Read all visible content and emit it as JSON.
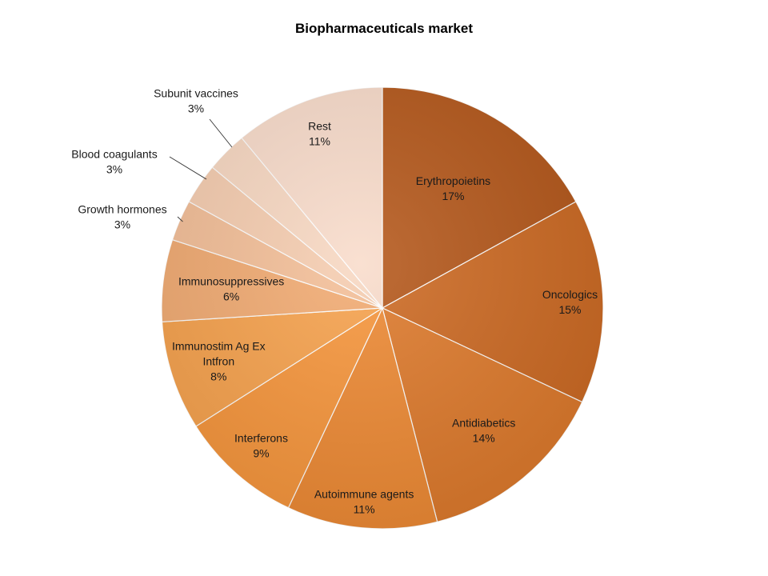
{
  "chart_data": {
    "type": "pie",
    "title": "Biopharmaceuticals market",
    "slices": [
      {
        "name": "Erythropoietins",
        "value": 17,
        "label": "17%",
        "color": "#b5581b"
      },
      {
        "name": "Oncologics",
        "value": 15,
        "label": "15%",
        "color": "#cd6a23"
      },
      {
        "name": "Antidiabetics",
        "value": 14,
        "label": "14%",
        "color": "#de7a2c"
      },
      {
        "name": "Autoimmune agents",
        "value": 11,
        "label": "11%",
        "color": "#ee8a34"
      },
      {
        "name": "Interferons",
        "value": 9,
        "label": "9%",
        "color": "#f7963c"
      },
      {
        "name": "Immunostim Ag Ex Intfron",
        "value": 8,
        "label": "8%",
        "color": "#f7a24d"
      },
      {
        "name": "Immunosuppressives",
        "value": 6,
        "label": "6%",
        "color": "#f2ab72"
      },
      {
        "name": "Growth hormones",
        "value": 3,
        "label": "3%",
        "color": "#f4bf98"
      },
      {
        "name": "Blood coagulants",
        "value": 3,
        "label": "3%",
        "color": "#f6cdb0"
      },
      {
        "name": "Subunit vaccines",
        "value": 3,
        "label": "3%",
        "color": "#f8d8c2"
      },
      {
        "name": "Rest",
        "value": 11,
        "label": "11%",
        "color": "#f9dccb"
      }
    ],
    "legend": "none",
    "data_labels": "category name and percentage"
  }
}
